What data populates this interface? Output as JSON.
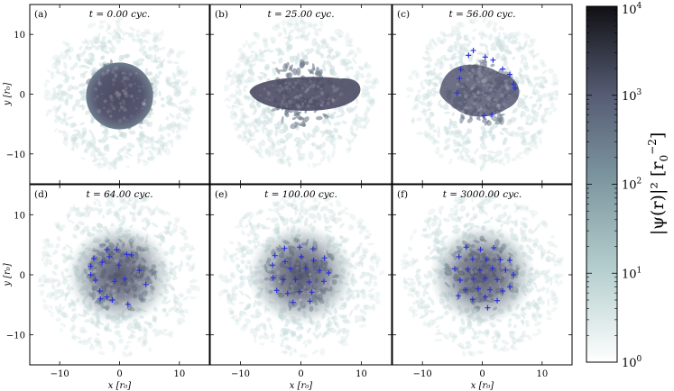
{
  "figure": {
    "panels": [
      {
        "tag": "(a)",
        "time": "t = 0.00 cyc.",
        "shape": "disk",
        "vortices": []
      },
      {
        "tag": "(b)",
        "time": "t = 25.00 cyc.",
        "shape": "elongated",
        "vortices": []
      },
      {
        "tag": "(c)",
        "time": "t = 56.00 cyc.",
        "shape": "irregular",
        "vortices": [
          [
            -1.5,
            7.3
          ],
          [
            -2.3,
            6.5
          ],
          [
            0.5,
            6.2
          ],
          [
            1.8,
            5.7
          ],
          [
            3.4,
            4.2
          ],
          [
            4.6,
            3.3
          ],
          [
            5.2,
            1.7
          ],
          [
            5.5,
            1.0
          ],
          [
            -3.6,
            4.1
          ],
          [
            -3.8,
            2.6
          ],
          [
            -4.2,
            0.2
          ],
          [
            0.3,
            -3.6
          ],
          [
            1.6,
            -3.4
          ]
        ]
      },
      {
        "tag": "(d)",
        "time": "t = 64.00 cyc.",
        "shape": "wide",
        "vortices": [
          [
            -2.1,
            4.2
          ],
          [
            -0.5,
            4.2
          ],
          [
            -4.3,
            2.7
          ],
          [
            -1.7,
            3.0
          ],
          [
            1.2,
            3.4
          ],
          [
            2.0,
            3.3
          ],
          [
            -4.8,
            1.4
          ],
          [
            -2.9,
            2.1
          ],
          [
            -0.1,
            1.6
          ],
          [
            3.3,
            0.7
          ],
          [
            -4.8,
            0.0
          ],
          [
            -4.0,
            -0.9
          ],
          [
            0.9,
            -0.7
          ],
          [
            -0.8,
            -1.1
          ],
          [
            4.4,
            -1.6
          ],
          [
            -3.3,
            -2.7
          ],
          [
            -2.1,
            -3.7
          ],
          [
            -1.2,
            -4.2
          ],
          [
            1.4,
            -4.9
          ],
          [
            -3.2,
            -4.0
          ]
        ]
      },
      {
        "tag": "(e)",
        "time": "t = 100.00 cyc.",
        "shape": "wide",
        "vortices": [
          [
            -2.7,
            4.4
          ],
          [
            -0.2,
            4.6
          ],
          [
            2.0,
            4.3
          ],
          [
            -4.3,
            3.2
          ],
          [
            -2.6,
            2.2
          ],
          [
            0.1,
            3.0
          ],
          [
            2.1,
            2.4
          ],
          [
            3.9,
            2.8
          ],
          [
            -4.7,
            1.6
          ],
          [
            -1.7,
            1.0
          ],
          [
            0.8,
            1.1
          ],
          [
            3.1,
            0.7
          ],
          [
            4.6,
            0.3
          ],
          [
            -4.6,
            -0.5
          ],
          [
            -2.9,
            -0.8
          ],
          [
            -0.9,
            -0.8
          ],
          [
            1.4,
            -1.2
          ],
          [
            3.8,
            -1.1
          ],
          [
            -4.0,
            -2.6
          ],
          [
            -2.2,
            -3.1
          ],
          [
            -0.2,
            -2.8
          ],
          [
            1.8,
            -2.9
          ],
          [
            -1.3,
            -4.6
          ],
          [
            1.5,
            -4.4
          ]
        ]
      },
      {
        "tag": "(f)",
        "time": "t = 3000.00 cyc.",
        "shape": "wide",
        "vortices": [
          [
            -2.7,
            4.6
          ],
          [
            -0.3,
            4.2
          ],
          [
            1.9,
            4.5
          ],
          [
            -3.9,
            3.0
          ],
          [
            -1.6,
            2.6
          ],
          [
            0.7,
            2.5
          ],
          [
            3.0,
            2.5
          ],
          [
            4.6,
            2.4
          ],
          [
            -4.6,
            1.0
          ],
          [
            -2.4,
            0.9
          ],
          [
            -0.4,
            0.8
          ],
          [
            1.7,
            1.1
          ],
          [
            3.9,
            0.8
          ],
          [
            5.2,
            0.0
          ],
          [
            -3.7,
            -0.9
          ],
          [
            -1.5,
            -0.7
          ],
          [
            0.5,
            -0.6
          ],
          [
            2.5,
            -0.8
          ],
          [
            -2.8,
            -2.5
          ],
          [
            -0.7,
            -2.3
          ],
          [
            1.3,
            -2.5
          ],
          [
            3.4,
            -2.7
          ],
          [
            -4.0,
            -3.5
          ],
          [
            -1.6,
            -4.1
          ],
          [
            0.5,
            -3.7
          ],
          [
            2.5,
            -4.3
          ],
          [
            0.9,
            -5.5
          ],
          [
            4.6,
            -2.0
          ]
        ]
      }
    ],
    "x_axis_label": "x [r₀]",
    "y_axis_label": "y [r₀]",
    "x_ticks": [
      -10,
      0,
      10
    ],
    "y_ticks": [
      10,
      0,
      -10
    ],
    "axis_range": [
      -15,
      15
    ],
    "vortex_marker": "plus",
    "vortex_color": "#2a30d8",
    "density_color_dark": "#2a2b3a",
    "density_color_mid": "#6b7a8a",
    "density_color_light": "#c9dcdc",
    "colorbar": {
      "label_main": "|ψ(r)|² [r",
      "label_sub": "0",
      "label_sup": "−2",
      "label_close": "]",
      "tick_base": "10",
      "tick_exponents": [
        "0",
        "1",
        "2",
        "3",
        "4"
      ],
      "log_range": [
        0,
        4
      ],
      "gradient_colors": [
        "#ffffff",
        "#b8d0d0",
        "#7f9aa2",
        "#565c74",
        "#101014"
      ]
    }
  }
}
